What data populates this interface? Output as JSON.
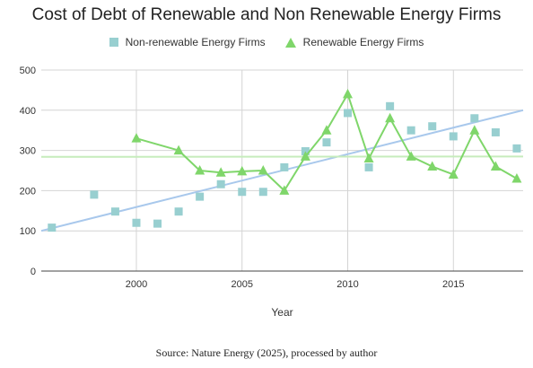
{
  "chart_data": {
    "type": "scatter",
    "title": "Cost of Debt of Renewable and Non Renewable Energy Firms",
    "xlabel": "Year",
    "ylabel": "",
    "xlim": [
      1995.5,
      2018.3
    ],
    "ylim": [
      0,
      500
    ],
    "xticks": [
      2000,
      2005,
      2010,
      2015
    ],
    "yticks": [
      0,
      100,
      200,
      300,
      400,
      500
    ],
    "grid": true,
    "legend_position": "top",
    "series": [
      {
        "name": "Non-renewable Energy Firms",
        "color": "#98cfd0",
        "marker": "square",
        "connect": false,
        "x": [
          1996,
          1998,
          1999,
          2000,
          2001,
          2002,
          2003,
          2004,
          2005,
          2006,
          2007,
          2008,
          2009,
          2010,
          2011,
          2012,
          2013,
          2014,
          2015,
          2016,
          2017,
          2018
        ],
        "y": [
          108,
          190,
          148,
          120,
          118,
          148,
          185,
          216,
          197,
          197,
          258,
          298,
          320,
          393,
          258,
          410,
          350,
          360,
          335,
          380,
          345,
          305
        ],
        "trendline": {
          "color": "#a8c8ec",
          "x": [
            1995.5,
            2018.3
          ],
          "y": [
            100,
            400
          ]
        }
      },
      {
        "name": "Renewable Energy Firms",
        "color": "#7fd66a",
        "marker": "triangle",
        "connect": true,
        "x": [
          2000,
          2002,
          2003,
          2004,
          2005,
          2006,
          2007,
          2008,
          2009,
          2010,
          2011,
          2012,
          2013,
          2014,
          2015,
          2016,
          2017,
          2018
        ],
        "y": [
          330,
          300,
          250,
          245,
          248,
          250,
          200,
          285,
          350,
          440,
          280,
          380,
          285,
          260,
          240,
          350,
          260,
          230
        ],
        "trendline": {
          "color": "#c6ecbc",
          "x": [
            1995.5,
            2018.3
          ],
          "y": [
            284,
            285
          ]
        }
      }
    ]
  },
  "source_note": "Source: Nature Energy (2025), processed by author"
}
